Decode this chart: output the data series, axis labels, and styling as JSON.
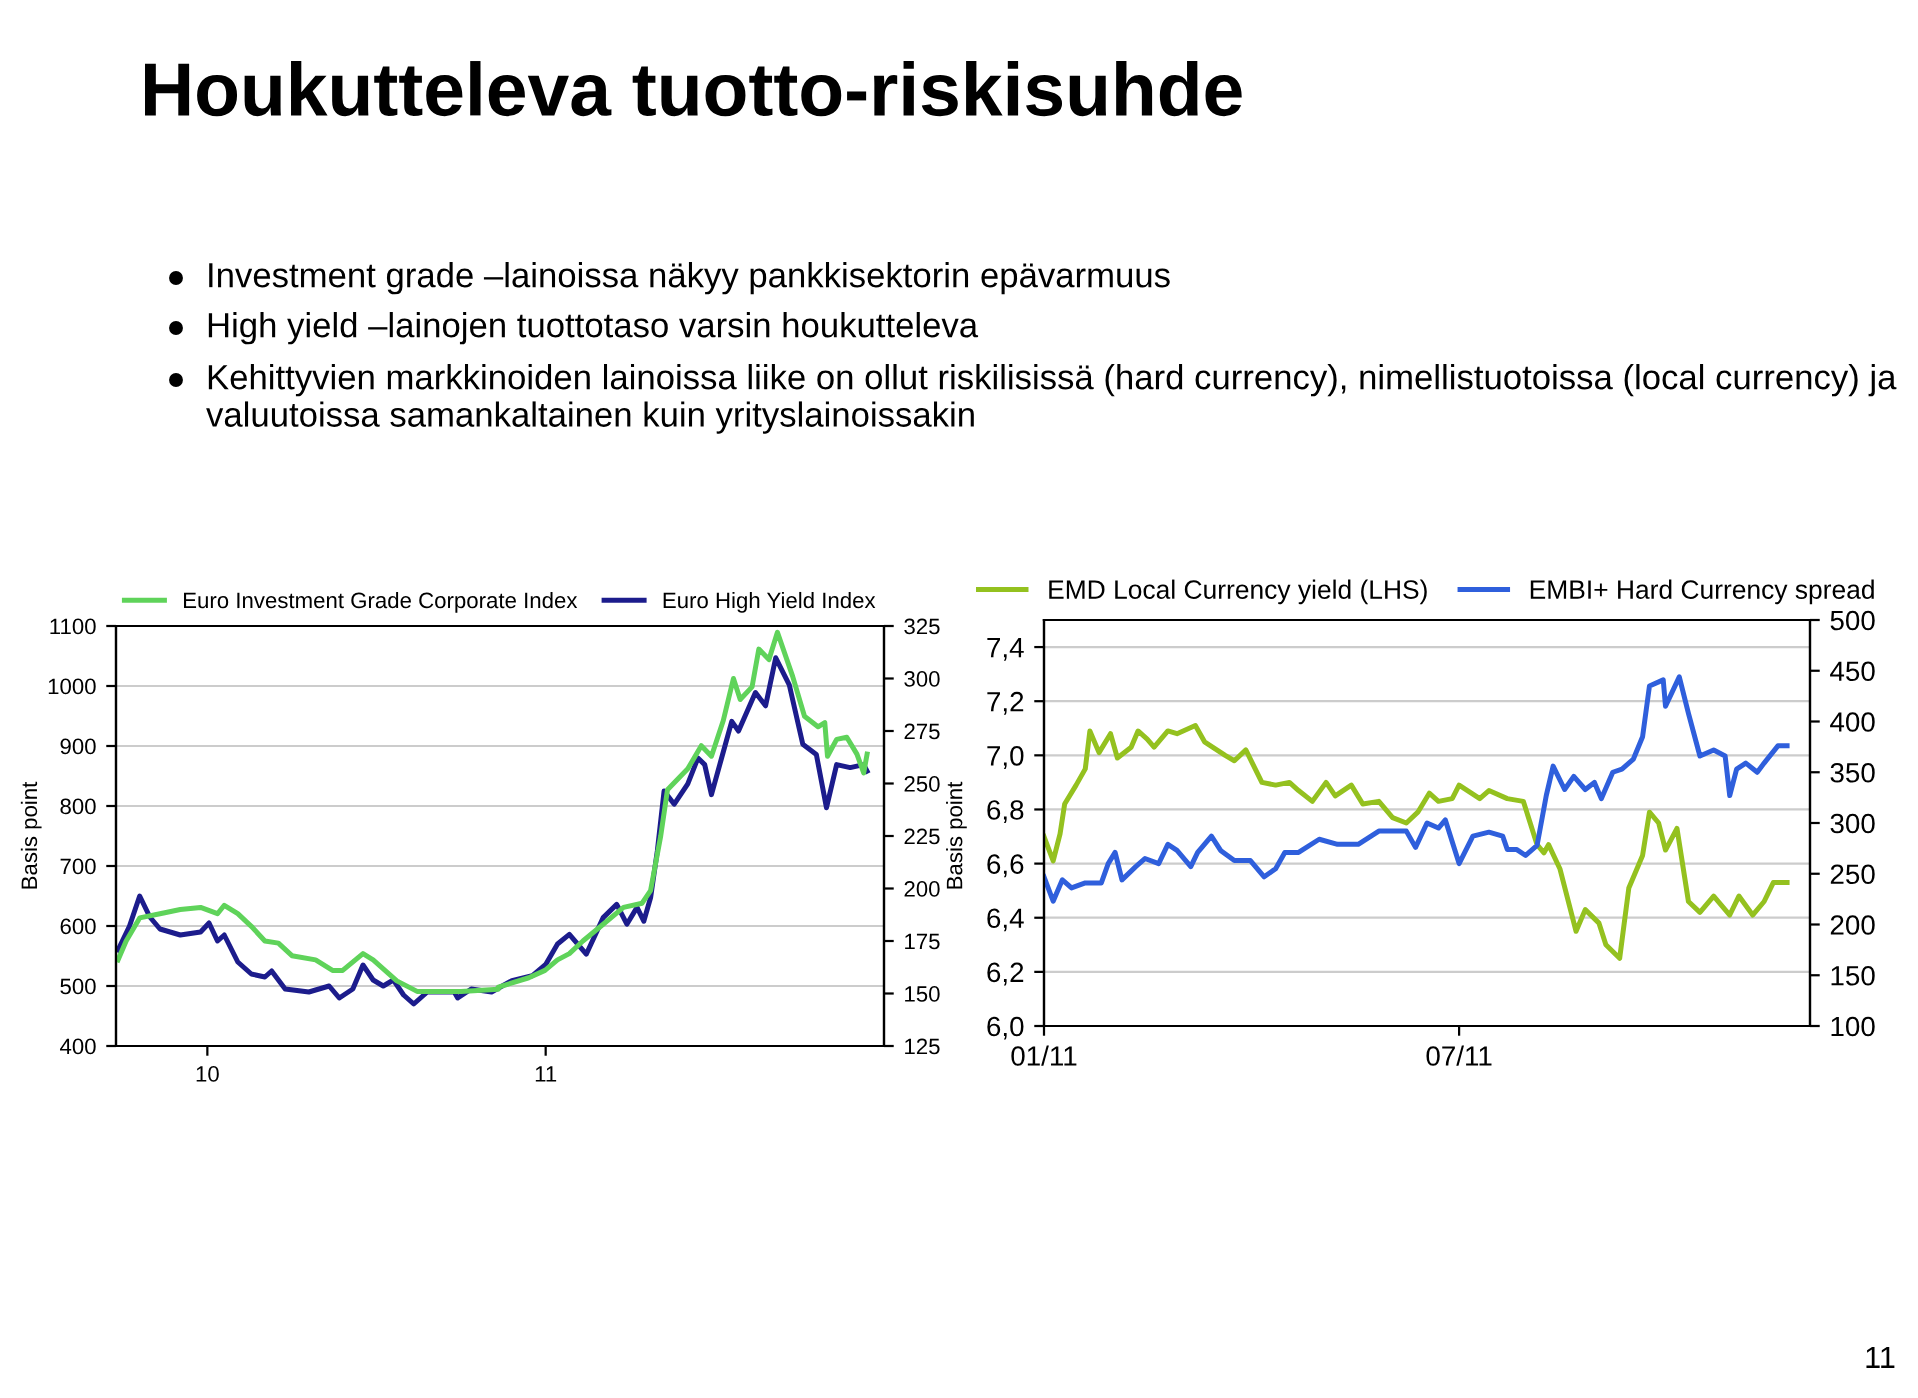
{
  "chart_data": [
    {
      "type": "other",
      "title": "Houkutteleva tuotto-riskisuhde",
      "annotations": [
        "Investment grade –lainoissa näkyy pankkisektorin epävarmuus",
        "High yield –lainojen tuottotaso varsin houkutteleva",
        "Kehittyvien markkinoiden lainoissa liike on ollut riskilisissä (hard currency), nimellistuotoissa (local currency) ja valuutoissa samankaltainen kuin yrityslainoissakin",
        "11"
      ]
    },
    {
      "type": "line",
      "ylabel": "Basis point",
      "y2label": "Basis point",
      "legend": "top",
      "grid": "y",
      "xlim": [
        2009.73,
        2012.0
      ],
      "xticks": [
        {
          "value": 2010,
          "label": "10"
        },
        {
          "value": 2011,
          "label": "11"
        }
      ],
      "ylim": [
        400,
        1100
      ],
      "yticks": [
        400,
        500,
        600,
        700,
        800,
        900,
        1000,
        1100
      ],
      "y2lim": [
        125,
        325
      ],
      "y2ticks": [
        125,
        150,
        175,
        200,
        225,
        250,
        275,
        300,
        325
      ],
      "series": [
        {
          "name": "Euro Investment Grade Corporate Index",
          "color": "#5fd35a",
          "axis": "y2",
          "x": [
            2009.736,
            2009.76,
            2009.8,
            2009.86,
            2009.92,
            2009.98,
            2010.03,
            2010.05,
            2010.09,
            2010.13,
            2010.17,
            2010.21,
            2010.25,
            2010.32,
            2010.37,
            2010.4,
            2010.46,
            2010.49,
            2010.56,
            2010.62,
            2010.68,
            2010.75,
            2010.86,
            2010.86,
            2010.95,
            2010.998,
            2011.035,
            2011.07,
            2011.11,
            2011.17,
            2011.23,
            2011.285,
            2011.31,
            2011.34,
            2011.36,
            2011.42,
            2011.46,
            2011.49,
            2011.525,
            2011.555,
            2011.575,
            2011.61,
            2011.63,
            2011.66,
            2011.685,
            2011.73,
            2011.765,
            2011.805,
            2011.825,
            2011.833,
            2011.86,
            2011.89,
            2011.92,
            2011.94,
            2011.95
          ],
          "values": [
            166,
            175,
            186,
            188,
            190,
            191,
            188,
            192,
            188,
            182,
            175,
            174,
            168,
            166,
            161,
            161,
            169,
            166,
            156,
            151,
            151,
            151,
            152,
            153,
            157.5,
            161,
            166,
            169,
            175,
            183,
            191,
            193,
            199,
            225,
            247,
            257,
            268,
            263,
            280,
            300,
            290,
            296,
            314,
            309,
            322,
            301,
            282,
            277,
            279,
            263,
            271,
            272,
            264,
            255,
            264
          ]
        },
        {
          "name": "Euro High Yield Index",
          "color": "#1c1c8c",
          "x": [
            2009.736,
            2009.77,
            2009.8,
            2009.83,
            2009.86,
            2009.92,
            2009.98,
            2010.005,
            2010.03,
            2010.05,
            2010.09,
            2010.13,
            2010.17,
            2010.19,
            2010.23,
            2010.3,
            2010.36,
            2010.39,
            2010.43,
            2010.46,
            2010.49,
            2010.52,
            2010.55,
            2010.58,
            2010.61,
            2010.65,
            2010.73,
            2010.74,
            2010.78,
            2010.84,
            2010.9,
            2010.96,
            2011.0,
            2011.035,
            2011.07,
            2011.12,
            2011.17,
            2011.21,
            2011.24,
            2011.27,
            2011.29,
            2011.31,
            2011.33,
            2011.35,
            2011.38,
            2011.42,
            2011.45,
            2011.47,
            2011.49,
            2011.52,
            2011.55,
            2011.57,
            2011.62,
            2011.65,
            2011.68,
            2011.72,
            2011.76,
            2011.8,
            2011.83,
            2011.86,
            2011.9,
            2011.94,
            2011.95
          ],
          "values": [
            560,
            600,
            650,
            615,
            595,
            585,
            590,
            605,
            575,
            585,
            540,
            520,
            515,
            525,
            495,
            490,
            500,
            480,
            495,
            535,
            510,
            500,
            510,
            485,
            470,
            490,
            490,
            480,
            495,
            490,
            509,
            517,
            536,
            570,
            586,
            553,
            614,
            636,
            603,
            631,
            608,
            647,
            725,
            825,
            803,
            837,
            880,
            869,
            819,
            880,
            941,
            925,
            989,
            967,
            1047,
            1002,
            903,
            886,
            797,
            869,
            864,
            869,
            858
          ]
        }
      ]
    },
    {
      "type": "line",
      "legend": "top",
      "grid": "y",
      "xlim": [
        "2011-01-01",
        "2011-12-01"
      ],
      "xticks": [
        {
          "value": "2011-01-01",
          "label": "01/11"
        },
        {
          "value": "2011-07-01",
          "label": "07/11"
        }
      ],
      "ylim": [
        6.0,
        7.5
      ],
      "yticks": [
        {
          "value": 6.0,
          "label": "6,0"
        },
        {
          "value": 6.2,
          "label": "6,2"
        },
        {
          "value": 6.4,
          "label": "6,4"
        },
        {
          "value": 6.6,
          "label": "6,6"
        },
        {
          "value": 6.8,
          "label": "6,8"
        },
        {
          "value": 7.0,
          "label": "7,0"
        },
        {
          "value": 7.2,
          "label": "7,2"
        },
        {
          "value": 7.4,
          "label": "7,4"
        }
      ],
      "y2lim": [
        100,
        500
      ],
      "y2ticks": [
        100,
        150,
        200,
        250,
        300,
        350,
        400,
        450,
        500
      ],
      "series": [
        {
          "name": "EMD Local Currency yield (LHS)",
          "color": "#94c11f",
          "x": [
            "2011-01-01",
            "2011-01-05",
            "2011-01-08",
            "2011-01-10",
            "2011-01-15",
            "2011-01-19",
            "2011-01-21",
            "2011-01-25",
            "2011-01-30",
            "2011-02-02",
            "2011-02-08",
            "2011-02-11",
            "2011-02-15",
            "2011-02-18",
            "2011-02-24",
            "2011-02-28",
            "2011-03-08",
            "2011-03-12",
            "2011-03-21",
            "2011-03-25",
            "2011-03-30",
            "2011-04-06",
            "2011-04-12",
            "2011-04-18",
            "2011-04-22",
            "2011-04-28",
            "2011-05-04",
            "2011-05-08",
            "2011-05-15",
            "2011-05-20",
            "2011-05-27",
            "2011-06-02",
            "2011-06-08",
            "2011-06-13",
            "2011-06-18",
            "2011-06-22",
            "2011-06-28",
            "2011-07-01",
            "2011-07-10",
            "2011-07-14",
            "2011-07-22",
            "2011-07-29",
            "2011-08-04",
            "2011-08-07",
            "2011-08-09",
            "2011-08-14",
            "2011-08-21",
            "2011-08-25",
            "2011-08-31",
            "2011-09-03",
            "2011-09-09",
            "2011-09-13",
            "2011-09-19",
            "2011-09-22",
            "2011-09-26",
            "2011-09-29",
            "2011-10-04",
            "2011-10-09",
            "2011-10-14",
            "2011-10-20",
            "2011-10-27",
            "2011-10-31",
            "2011-11-06",
            "2011-11-11",
            "2011-11-15",
            "2011-11-21"
          ],
          "values": [
            6.7,
            6.61,
            6.71,
            6.82,
            6.89,
            6.95,
            7.09,
            7.01,
            7.08,
            6.99,
            7.03,
            7.09,
            7.06,
            7.03,
            7.09,
            7.08,
            7.11,
            7.05,
            7.0,
            6.98,
            7.02,
            6.9,
            6.89,
            6.9,
            6.87,
            6.83,
            6.9,
            6.85,
            6.89,
            6.82,
            6.83,
            6.77,
            6.75,
            6.79,
            6.86,
            6.83,
            6.84,
            6.89,
            6.84,
            6.87,
            6.84,
            6.83,
            6.67,
            6.64,
            6.67,
            6.58,
            6.35,
            6.43,
            6.38,
            6.3,
            6.25,
            6.51,
            6.63,
            6.79,
            6.75,
            6.65,
            6.73,
            6.46,
            6.42,
            6.48,
            6.41,
            6.48,
            6.41,
            6.46,
            6.53,
            6.53
          ]
        },
        {
          "name": "EMBI+ Hard Currency spread",
          "color": "#2f5fdc",
          "axis": "y2",
          "x": [
            "2011-01-01",
            "2011-01-05",
            "2011-01-09",
            "2011-01-13",
            "2011-01-19",
            "2011-01-26",
            "2011-01-29",
            "2011-02-01",
            "2011-02-04",
            "2011-02-10",
            "2011-02-14",
            "2011-02-20",
            "2011-02-24",
            "2011-02-28",
            "2011-03-06",
            "2011-03-09",
            "2011-03-15",
            "2011-03-19",
            "2011-03-25",
            "2011-04-01",
            "2011-04-07",
            "2011-04-12",
            "2011-04-16",
            "2011-04-22",
            "2011-05-01",
            "2011-05-09",
            "2011-05-18",
            "2011-05-27",
            "2011-06-08",
            "2011-06-12",
            "2011-06-17",
            "2011-06-22",
            "2011-06-25",
            "2011-07-01",
            "2011-07-07",
            "2011-07-14",
            "2011-07-20",
            "2011-07-22",
            "2011-07-26",
            "2011-07-30",
            "2011-08-04",
            "2011-08-08",
            "2011-08-11",
            "2011-08-16",
            "2011-08-20",
            "2011-08-25",
            "2011-08-29",
            "2011-09-01",
            "2011-09-06",
            "2011-09-10",
            "2011-09-15",
            "2011-09-19",
            "2011-09-22",
            "2011-09-28",
            "2011-09-29",
            "2011-10-05",
            "2011-10-09",
            "2011-10-14",
            "2011-10-20",
            "2011-10-25",
            "2011-10-27",
            "2011-10-30",
            "2011-11-03",
            "2011-11-08",
            "2011-11-11",
            "2011-11-17",
            "2011-11-21"
          ],
          "values": [
            247,
            223,
            244,
            236,
            241,
            241,
            260,
            271,
            244,
            257,
            265,
            260,
            279,
            273,
            257,
            271,
            287,
            273,
            263,
            263,
            247,
            255,
            271,
            271,
            284,
            279,
            279,
            292,
            292,
            276,
            300,
            295,
            303,
            260,
            287,
            291,
            287,
            274,
            274,
            268,
            278,
            327,
            356,
            333,
            346,
            333,
            340,
            324,
            350,
            353,
            363,
            385,
            435,
            441,
            415,
            444,
            408,
            366,
            372,
            366,
            327,
            353,
            359,
            350,
            359,
            376,
            376
          ]
        }
      ]
    }
  ]
}
